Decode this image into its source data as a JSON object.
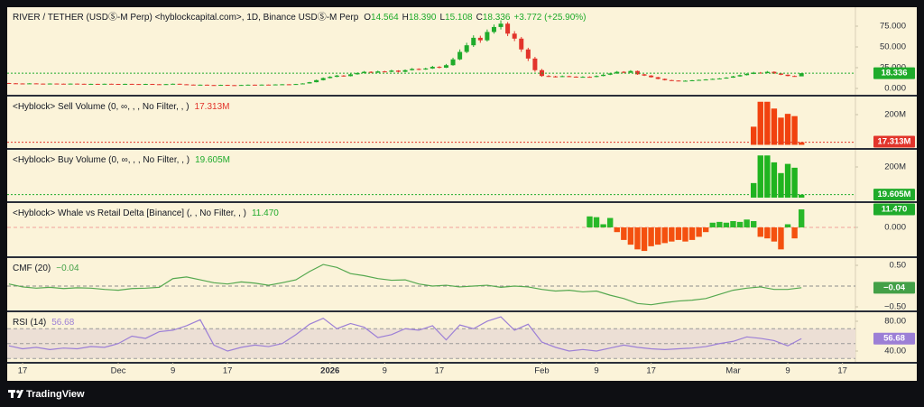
{
  "chart_data": [
    {
      "type": "candlestick",
      "title": "RIVER / TETHER (USDⓈ-M Perp) <hyblockcapital.com>, 1D, Binance USDⓈ-M Perp",
      "header": [
        {
          "key": "O",
          "value": "14.564"
        },
        {
          "key": "H",
          "value": "18.390"
        },
        {
          "key": "L",
          "value": "15.108"
        },
        {
          "key": "C",
          "value": "18.336"
        }
      ],
      "change": "+3.772 (+25.90%)",
      "x": [
        -2,
        -1,
        0,
        1,
        2,
        3,
        4,
        5,
        6,
        7,
        8,
        9,
        10,
        11,
        12,
        13,
        14,
        15,
        16,
        17,
        18,
        19,
        20,
        21,
        22,
        23,
        24,
        25,
        26,
        27,
        28,
        29,
        30,
        31,
        32,
        33,
        34,
        35,
        36,
        37,
        38,
        39,
        40,
        41,
        42,
        43,
        44,
        45,
        46,
        47,
        48,
        49,
        50,
        51,
        52,
        53,
        54,
        55,
        56,
        57,
        58,
        59,
        60,
        61,
        62,
        63,
        64,
        65,
        66,
        67,
        68,
        69,
        70,
        71,
        72,
        73,
        74,
        75,
        76,
        77,
        78,
        79,
        80,
        81,
        82,
        83,
        84,
        85,
        86,
        87,
        88,
        89,
        90,
        91,
        92,
        93,
        94,
        95,
        96,
        97,
        98,
        99,
        100,
        101,
        102,
        103,
        104,
        105,
        106,
        107,
        108,
        109,
        110,
        111,
        112,
        113,
        114
      ],
      "candles": [
        [
          6.5,
          6.7,
          6.0,
          6.2
        ],
        [
          6.2,
          6.4,
          5.8,
          6.0
        ],
        [
          6.0,
          6.2,
          5.7,
          5.9
        ],
        [
          5.9,
          6.3,
          5.8,
          6.1
        ],
        [
          6.1,
          6.2,
          5.6,
          5.8
        ],
        [
          5.8,
          5.9,
          5.4,
          5.6
        ],
        [
          5.6,
          6.1,
          5.5,
          5.9
        ],
        [
          5.9,
          6.0,
          5.5,
          5.7
        ],
        [
          5.7,
          5.8,
          5.3,
          5.5
        ],
        [
          5.5,
          6.0,
          5.4,
          5.8
        ],
        [
          5.8,
          5.9,
          5.4,
          5.6
        ],
        [
          5.6,
          5.7,
          5.2,
          5.4
        ],
        [
          5.4,
          5.7,
          5.3,
          5.5
        ],
        [
          5.5,
          5.6,
          5.1,
          5.3
        ],
        [
          5.3,
          5.8,
          5.2,
          5.6
        ],
        [
          5.6,
          5.7,
          5.2,
          5.4
        ],
        [
          5.4,
          5.5,
          5.0,
          5.2
        ],
        [
          5.2,
          5.7,
          5.1,
          5.5
        ],
        [
          5.5,
          5.6,
          5.1,
          5.3
        ],
        [
          5.3,
          5.4,
          4.8,
          5.0
        ],
        [
          5.0,
          5.6,
          4.9,
          5.4
        ],
        [
          5.4,
          5.5,
          4.9,
          5.1
        ],
        [
          5.1,
          5.2,
          4.6,
          4.8
        ],
        [
          4.8,
          5.4,
          4.7,
          5.2
        ],
        [
          5.2,
          5.9,
          5.1,
          5.6
        ],
        [
          5.6,
          5.7,
          4.8,
          5.0
        ],
        [
          5.0,
          5.1,
          4.4,
          4.6
        ],
        [
          4.6,
          4.7,
          4.0,
          4.2
        ],
        [
          4.2,
          4.7,
          4.1,
          4.5
        ],
        [
          4.5,
          4.6,
          3.9,
          4.1
        ],
        [
          4.1,
          4.2,
          3.7,
          3.9
        ],
        [
          3.9,
          4.5,
          3.8,
          4.3
        ],
        [
          4.3,
          4.4,
          3.8,
          4.0
        ],
        [
          4.0,
          4.1,
          3.6,
          3.8
        ],
        [
          3.8,
          4.4,
          3.7,
          4.2
        ],
        [
          4.2,
          4.7,
          4.1,
          4.5
        ],
        [
          4.5,
          4.6,
          4.1,
          4.3
        ],
        [
          4.3,
          4.8,
          4.2,
          4.6
        ],
        [
          4.6,
          4.7,
          4.2,
          4.4
        ],
        [
          4.4,
          5.0,
          4.3,
          4.8
        ],
        [
          4.8,
          5.2,
          4.7,
          5.0
        ],
        [
          5.0,
          5.1,
          4.5,
          4.7
        ],
        [
          4.7,
          5.5,
          4.6,
          5.3
        ],
        [
          5.3,
          6.3,
          5.2,
          6.0
        ],
        [
          6.0,
          7.9,
          5.9,
          7.5
        ],
        [
          7.5,
          10.6,
          7.3,
          10.0
        ],
        [
          10.0,
          13.2,
          9.6,
          12.5
        ],
        [
          12.5,
          14.8,
          12.0,
          14.0
        ],
        [
          14.0,
          16.4,
          13.5,
          15.5
        ],
        [
          15.5,
          16.0,
          14.2,
          14.8
        ],
        [
          14.8,
          17.8,
          14.5,
          17.0
        ],
        [
          17.0,
          19.4,
          16.6,
          18.5
        ],
        [
          18.5,
          21.0,
          18.0,
          20.0
        ],
        [
          20.0,
          20.6,
          18.4,
          19.0
        ],
        [
          19.0,
          21.4,
          18.7,
          20.5
        ],
        [
          20.5,
          21.2,
          19.4,
          20.0
        ],
        [
          20.0,
          22.5,
          19.6,
          21.5
        ],
        [
          21.5,
          22.0,
          19.3,
          20.0
        ],
        [
          20.0,
          22.9,
          19.7,
          22.0
        ],
        [
          22.0,
          24.6,
          21.5,
          23.5
        ],
        [
          23.5,
          24.2,
          22.0,
          22.8
        ],
        [
          22.8,
          25.0,
          22.4,
          24.0
        ],
        [
          24.0,
          27.2,
          23.5,
          26.0
        ],
        [
          26.0,
          26.8,
          24.2,
          25.0
        ],
        [
          25.0,
          29.5,
          24.6,
          28.0
        ],
        [
          28.0,
          37.0,
          27.4,
          35.0
        ],
        [
          35.0,
          47.0,
          34.0,
          44.0
        ],
        [
          44.0,
          55.0,
          42.5,
          52.0
        ],
        [
          52.0,
          64.0,
          50.0,
          61.0
        ],
        [
          61.0,
          63.5,
          55.0,
          58.0
        ],
        [
          58.0,
          71.0,
          56.5,
          68.0
        ],
        [
          68.0,
          77.0,
          66.0,
          74.0
        ],
        [
          74.0,
          82.0,
          71.0,
          78.0
        ],
        [
          78.0,
          80.0,
          63.0,
          66.0
        ],
        [
          66.0,
          69.0,
          57.0,
          60.0
        ],
        [
          60.0,
          62.0,
          44.0,
          47.0
        ],
        [
          47.0,
          49.0,
          33.0,
          36.0
        ],
        [
          36.0,
          38.0,
          20.0,
          22.0
        ],
        [
          22.0,
          23.5,
          14.0,
          15.0
        ],
        [
          15.0,
          16.0,
          13.8,
          14.5
        ],
        [
          14.5,
          15.2,
          13.3,
          14.0
        ],
        [
          14.0,
          15.6,
          13.7,
          14.8
        ],
        [
          14.8,
          15.3,
          13.8,
          14.2
        ],
        [
          14.2,
          14.6,
          13.0,
          13.5
        ],
        [
          13.5,
          14.7,
          13.2,
          14.0
        ],
        [
          14.0,
          14.5,
          13.3,
          13.8
        ],
        [
          13.8,
          15.8,
          13.5,
          15.0
        ],
        [
          15.0,
          17.3,
          14.6,
          16.5
        ],
        [
          16.5,
          18.9,
          16.0,
          18.0
        ],
        [
          18.0,
          21.0,
          17.6,
          20.0
        ],
        [
          20.0,
          20.8,
          18.3,
          19.0
        ],
        [
          19.0,
          22.0,
          18.6,
          21.0
        ],
        [
          21.0,
          21.6,
          16.4,
          17.0
        ],
        [
          17.0,
          17.5,
          15.0,
          15.5
        ],
        [
          15.5,
          16.0,
          13.0,
          13.5
        ],
        [
          13.5,
          14.0,
          11.0,
          11.5
        ],
        [
          11.5,
          12.0,
          9.6,
          10.0
        ],
        [
          10.0,
          10.4,
          9.1,
          9.5
        ],
        [
          9.5,
          9.8,
          8.6,
          9.0
        ],
        [
          9.0,
          9.7,
          8.8,
          9.3
        ],
        [
          9.3,
          10.2,
          9.1,
          9.8
        ],
        [
          9.8,
          10.7,
          9.6,
          10.3
        ],
        [
          10.3,
          11.2,
          10.1,
          10.8
        ],
        [
          10.8,
          12.0,
          10.6,
          11.5
        ],
        [
          11.5,
          12.5,
          11.2,
          12.0
        ],
        [
          12.0,
          13.6,
          11.8,
          13.0
        ],
        [
          13.0,
          15.2,
          12.8,
          14.5
        ],
        [
          14.5,
          16.8,
          14.2,
          16.0
        ],
        [
          16.0,
          18.3,
          15.6,
          17.5
        ],
        [
          17.5,
          20.0,
          17.2,
          19.0
        ],
        [
          19.0,
          19.8,
          17.8,
          18.5
        ],
        [
          18.5,
          21.0,
          18.2,
          20.0
        ],
        [
          20.0,
          20.6,
          17.4,
          18.0
        ],
        [
          18.0,
          18.5,
          16.0,
          16.5
        ],
        [
          16.5,
          17.0,
          14.6,
          15.0
        ],
        [
          15.0,
          15.6,
          14.1,
          14.6
        ],
        [
          14.564,
          18.39,
          15.108,
          18.336
        ]
      ],
      "up_color": "#1fab2b",
      "down_color": "#e2342b",
      "tag_color": "#1fab2b",
      "last_line": true,
      "xlim": [
        -2.25,
        121.9
      ],
      "xticks": [
        {
          "value": 0,
          "label": "17"
        },
        {
          "value": 14,
          "label": "Dec"
        },
        {
          "value": 22,
          "label": "9"
        },
        {
          "value": 30,
          "label": "17"
        },
        {
          "value": 45,
          "label": "2026"
        },
        {
          "value": 53,
          "label": "9"
        },
        {
          "value": 61,
          "label": "17"
        },
        {
          "value": 76,
          "label": "Feb"
        },
        {
          "value": 84,
          "label": "9"
        },
        {
          "value": 92,
          "label": "17"
        },
        {
          "value": 104,
          "label": "Mar"
        },
        {
          "value": 112,
          "label": "9"
        },
        {
          "value": 120,
          "label": "17"
        }
      ],
      "ylim": [
        -7.61,
        97.83
      ],
      "yticks": [
        {
          "value": 75,
          "label": "75.000"
        },
        {
          "value": 50,
          "label": "50.000"
        },
        {
          "value": 25,
          "label": "25.000"
        },
        {
          "value": 0,
          "label": "0.000"
        }
      ]
    },
    {
      "type": "bar",
      "title": "<Hyblock> Sell Volume (0, ∞, , , No Filter, , )",
      "last_label": "17.313M",
      "x": [
        107,
        108,
        109,
        110,
        111,
        112,
        113,
        114
      ],
      "values": [
        120000000,
        285000000,
        285000000,
        240000000,
        180000000,
        205000000,
        190000000,
        17313000
      ],
      "color": "#f1420f",
      "tag_color": "#e2342b",
      "last_line": true,
      "ylim": [
        -20900000,
        319400000
      ],
      "yticks": [
        {
          "value": 200000000,
          "label": "200M"
        }
      ]
    },
    {
      "type": "bar",
      "title": "<Hyblock> Buy Volume (0, ∞, , , No Filter, , )",
      "last_label": "19.605M",
      "x": [
        107,
        108,
        109,
        110,
        111,
        112,
        113,
        114
      ],
      "values": [
        95000000,
        275000000,
        275000000,
        230000000,
        160000000,
        220000000,
        195000000,
        19605000
      ],
      "color": "#1fb41f",
      "tag_color": "#1fab2b",
      "last_line": true,
      "ylim": [
        -23500000,
        311800000
      ],
      "yticks": [
        {
          "value": 200000000,
          "label": "200M"
        }
      ]
    },
    {
      "type": "bar",
      "title": "<Hyblock> Whale vs Retail Delta [Binance] (, , No Filter, , )",
      "last_label": "11.470",
      "x": [
        83,
        84,
        85,
        86,
        87,
        88,
        89,
        90,
        91,
        92,
        93,
        94,
        95,
        96,
        97,
        98,
        99,
        100,
        101,
        102,
        103,
        104,
        105,
        106,
        107,
        108,
        109,
        110,
        111,
        112,
        113,
        114
      ],
      "values": [
        7,
        6.5,
        2,
        6,
        -3,
        -8,
        -11,
        -14,
        -15,
        -12,
        -11,
        -10,
        -9,
        -8,
        -9,
        -8,
        -6,
        -3,
        3,
        3.5,
        3,
        4,
        3.5,
        5,
        4,
        -6,
        -7,
        -9,
        -14,
        2,
        -7,
        11.47
      ],
      "pos_color": "#29b829",
      "neg_color": "#f4500f",
      "tag_color": "#1fab2b",
      "hlines": [
        0
      ],
      "hline_color": "#f0a09a",
      "ylim": [
        -18.4,
        15.5
      ],
      "yticks": [
        {
          "value": 0,
          "label": "0.000"
        }
      ]
    },
    {
      "type": "line",
      "title": "CMF (20)",
      "last_label": "−0.04",
      "x": [
        -2,
        0,
        2,
        4,
        6,
        8,
        10,
        12,
        14,
        16,
        18,
        20,
        22,
        24,
        26,
        28,
        30,
        32,
        34,
        36,
        38,
        40,
        42,
        44,
        46,
        48,
        50,
        52,
        54,
        56,
        58,
        60,
        62,
        64,
        66,
        68,
        70,
        72,
        74,
        76,
        78,
        80,
        82,
        84,
        86,
        88,
        90,
        92,
        94,
        96,
        98,
        100,
        102,
        104,
        106,
        108,
        110,
        112,
        114
      ],
      "values": [
        0.05,
        -0.02,
        -0.05,
        -0.03,
        -0.06,
        -0.04,
        -0.05,
        -0.08,
        -0.1,
        -0.06,
        -0.05,
        -0.03,
        0.18,
        0.22,
        0.15,
        0.08,
        0.05,
        0.1,
        0.07,
        0.02,
        0.08,
        0.15,
        0.35,
        0.52,
        0.45,
        0.3,
        0.25,
        0.18,
        0.14,
        0.15,
        0.05,
        0,
        0.02,
        -0.02,
        0,
        0.02,
        -0.03,
        0,
        -0.02,
        -0.08,
        -0.12,
        -0.1,
        -0.14,
        -0.12,
        -0.22,
        -0.3,
        -0.42,
        -0.45,
        -0.4,
        -0.36,
        -0.34,
        -0.3,
        -0.2,
        -0.1,
        -0.05,
        -0.02,
        -0.08,
        -0.08,
        -0.04
      ],
      "color": "#55a84f",
      "tag_color": "#43a047",
      "hlines": [
        0
      ],
      "hline_color": "#8c8c8c",
      "ylim": [
        -0.587,
        0.674
      ],
      "yticks": [
        {
          "value": 0.5,
          "label": "0.50"
        },
        {
          "value": -0.5,
          "label": "−0.50"
        }
      ]
    },
    {
      "type": "line",
      "title": "RSI (14)",
      "x": [
        -2,
        0,
        2,
        4,
        6,
        8,
        10,
        12,
        14,
        16,
        18,
        20,
        22,
        24,
        26,
        28,
        30,
        32,
        34,
        36,
        38,
        40,
        42,
        44,
        46,
        48,
        50,
        52,
        54,
        56,
        58,
        60,
        62,
        64,
        66,
        68,
        70,
        72,
        74,
        76,
        78,
        80,
        82,
        84,
        86,
        88,
        90,
        92,
        94,
        96,
        98,
        100,
        102,
        104,
        106,
        108,
        110,
        112,
        114
      ],
      "values": [
        47,
        43,
        45,
        42,
        44,
        43,
        46,
        45,
        50,
        60,
        57,
        66,
        68,
        74,
        82,
        48,
        40,
        45,
        48,
        46,
        50,
        62,
        76,
        84,
        70,
        77,
        72,
        58,
        62,
        70,
        68,
        74,
        55,
        75,
        70,
        80,
        86,
        68,
        76,
        52,
        45,
        40,
        42,
        40,
        44,
        48,
        45,
        43,
        42,
        43,
        44,
        46,
        50,
        53,
        59,
        57,
        54,
        47,
        56.68
      ],
      "color": "#9c7fd6",
      "tag_color": "#9c7fd6",
      "band": [
        30,
        70
      ],
      "band_color": "#ecdfd5",
      "hlines": [
        70,
        50,
        30
      ],
      "hline_color": "#9a9a9a",
      "ylim": [
        25.45,
        92.1
      ],
      "yticks": [
        {
          "value": 80,
          "label": "80.00"
        },
        {
          "value": 40,
          "label": "40.00"
        }
      ]
    }
  ],
  "brand": "TradingView"
}
